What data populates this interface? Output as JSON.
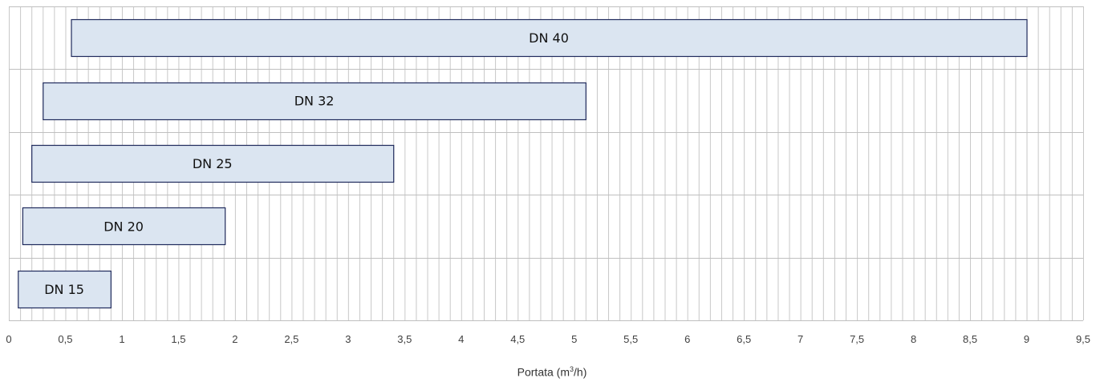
{
  "chart_data": {
    "type": "bar",
    "orientation": "horizontal-range",
    "title": "",
    "xlabel": "Portata (m3/h)",
    "xlabel_parts": {
      "pre": "Portata (m",
      "sup": "3",
      "post": "/h)"
    },
    "ylabel": "",
    "xlim": [
      0,
      9.5
    ],
    "grid": true,
    "x_ticks": [
      "0",
      "0,5",
      "1",
      "1,5",
      "2",
      "2,5",
      "3",
      "3,5",
      "4",
      "4,5",
      "5",
      "5,5",
      "6",
      "6,5",
      "7",
      "7,5",
      "8",
      "8,5",
      "9",
      "9,5"
    ],
    "categories": [
      "DN 40",
      "DN 32",
      "DN 25",
      "DN 20",
      "DN 15"
    ],
    "ranges": [
      {
        "label": "DN 40",
        "start": 0.55,
        "end": 9.0
      },
      {
        "label": "DN 32",
        "start": 0.3,
        "end": 5.1
      },
      {
        "label": "DN 25",
        "start": 0.2,
        "end": 3.4
      },
      {
        "label": "DN 20",
        "start": 0.12,
        "end": 1.91
      },
      {
        "label": "DN 15",
        "start": 0.08,
        "end": 0.9
      }
    ],
    "colors": {
      "bar_fill": "#dbe5f1",
      "bar_stroke": "#1f2a5c",
      "grid": "#c8c8c8"
    }
  }
}
